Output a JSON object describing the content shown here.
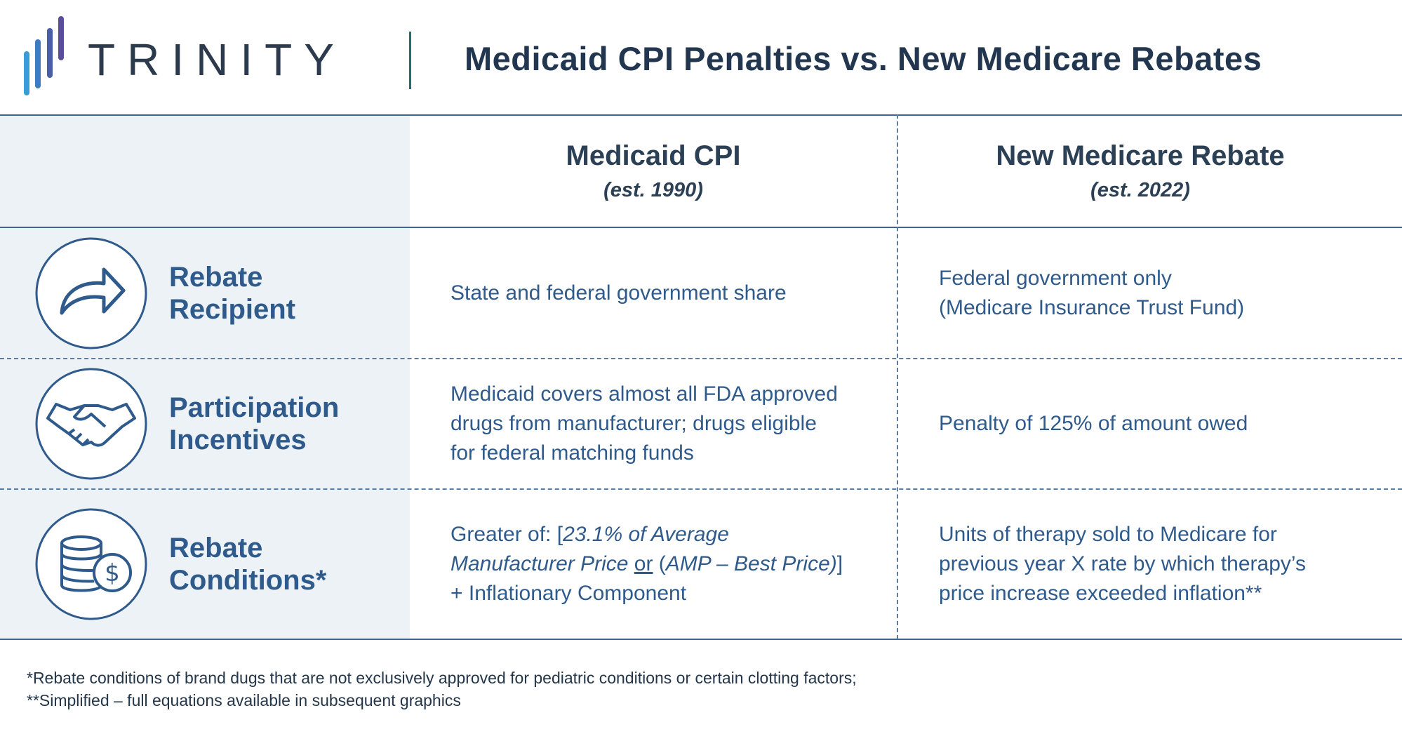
{
  "header": {
    "logo": "TRINITY",
    "title": "Medicaid CPI Penalties vs. New Medicare Rebates"
  },
  "table": {
    "columns": [
      {
        "title": "Medicaid CPI",
        "subtitle": "(est. 1990)"
      },
      {
        "title": "New Medicare Rebate",
        "subtitle": "(est. 2022)"
      }
    ],
    "rows": [
      {
        "label": [
          "Rebate",
          "Recipient"
        ],
        "icon": "arrow",
        "cells": [
          [
            [
              {
                "text": "State and federal government share"
              }
            ]
          ],
          [
            [
              {
                "text": "Federal government only"
              }
            ],
            [
              {
                "text": "(Medicare Insurance Trust Fund)"
              }
            ]
          ]
        ]
      },
      {
        "label": [
          "Participation",
          "Incentives"
        ],
        "icon": "handshake",
        "cells": [
          [
            [
              {
                "text": "Medicaid covers almost all FDA approved"
              }
            ],
            [
              {
                "text": "drugs from manufacturer; drugs eligible"
              }
            ],
            [
              {
                "text": "for federal matching funds"
              }
            ]
          ],
          [
            [
              {
                "text": "Penalty of 125% of amount owed"
              }
            ]
          ]
        ]
      },
      {
        "label": [
          "Rebate",
          "Conditions*"
        ],
        "icon": "coins",
        "cells": [
          [
            [
              {
                "text": "Greater of: ["
              },
              {
                "text": "23.1% of Average",
                "style": "italic"
              }
            ],
            [
              {
                "text": "Manufacturer Price ",
                "style": "italic"
              },
              {
                "text": "or",
                "style": "underline"
              },
              {
                "text": " ("
              },
              {
                "text": "AMP – Best Price)",
                "style": "italic"
              },
              {
                "text": "]"
              }
            ],
            [
              {
                "text": "+ Inflationary Component"
              }
            ]
          ],
          [
            [
              {
                "text": "Units of therapy sold to Medicare for"
              }
            ],
            [
              {
                "text": "previous year X rate by which therapy’s"
              }
            ],
            [
              {
                "text": "price increase exceeded inflation**"
              }
            ]
          ]
        ]
      }
    ]
  },
  "footnotes": [
    "*Rebate conditions of brand dugs that are not exclusively approved for pediatric conditions or certain clotting factors;",
    "**Simplified – full equations available in subsequent graphics"
  ]
}
